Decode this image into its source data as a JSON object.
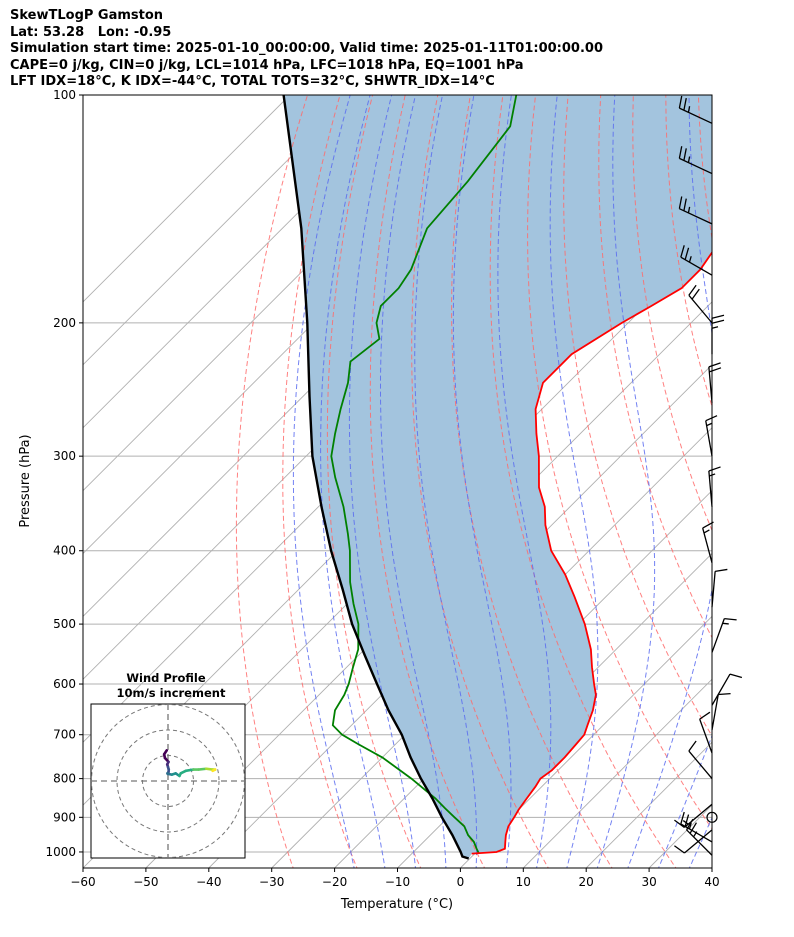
{
  "header": {
    "line1": "SkewTLogP Gamston",
    "line2": "Lat: 53.28   Lon: -0.95",
    "line3": "Simulation start time: 2025-01-10_00:00:00, Valid time: 2025-01-11T01:00:00.00",
    "line4": "CAPE=0 j/kg, CIN=0 j/kg, LCL=1014 hPa, LFC=1018 hPa, EQ=1001 hPa",
    "line5": "LFT IDX=18°C, K IDX=-44°C, TOTAL TOTS=32°C, SHWTR_IDX=14°C"
  },
  "chart_data": {
    "type": "line",
    "subtype": "skew-t log-p",
    "xlabel": "Temperature (°C)",
    "ylabel": "Pressure (hPa)",
    "xlim": [
      -60,
      40
    ],
    "ylim": [
      1050,
      100
    ],
    "y_scale": "log",
    "grid": true,
    "x_ticks": [
      -60,
      -50,
      -40,
      -30,
      -20,
      -10,
      0,
      10,
      20,
      30,
      40
    ],
    "x_tick_labels": [
      "−60",
      "−50",
      "−40",
      "−30",
      "−20",
      "−10",
      "0",
      "10",
      "20",
      "30",
      "40"
    ],
    "y_ticks": [
      1000,
      900,
      800,
      700,
      600,
      500,
      400,
      300,
      200,
      100
    ],
    "y_tick_labels": [
      "1000",
      "900",
      "800",
      "700",
      "600",
      "500",
      "400",
      "300",
      "200",
      "100"
    ],
    "colors": {
      "temperature": "#ff0000",
      "dewpoint": "#008000",
      "parcel": "#000000",
      "cape_fill": "#a3c4de",
      "dry_adiabats": "#ff6b6b",
      "moist_adiabats": "#5b6cf0",
      "isotherms": "#b0b0b0"
    },
    "series": [
      {
        "key": "temperature",
        "pressure": [
          1005,
          1000,
          990,
          970,
          950,
          925,
          900,
          880,
          850,
          820,
          800,
          780,
          750,
          720,
          700,
          680,
          650,
          620,
          600,
          570,
          540,
          500,
          460,
          430,
          400,
          370,
          350,
          330,
          300,
          280,
          260,
          240,
          220,
          200,
          190,
          180,
          170,
          160,
          150,
          140,
          130,
          120,
          110,
          100
        ],
        "temp": [
          -0.5,
          3.2,
          4,
          3,
          2,
          1,
          0.5,
          0,
          -0.5,
          -1,
          -1.5,
          -1,
          -1,
          -1.3,
          -1.5,
          -2.5,
          -4,
          -6,
          -8,
          -11,
          -14,
          -19,
          -25,
          -30,
          -36,
          -41,
          -44,
          -48,
          -53,
          -57,
          -61,
          -64,
          -64,
          -61,
          -59,
          -57,
          -57,
          -58,
          -58.2,
          -57.5,
          -57.5,
          -57.6,
          -57.5,
          -57.3
        ]
      },
      {
        "key": "dewpoint",
        "pressure": [
          1003,
          990,
          970,
          950,
          925,
          900,
          875,
          850,
          800,
          750,
          720,
          700,
          680,
          650,
          620,
          600,
          570,
          540,
          500,
          470,
          440,
          400,
          380,
          350,
          320,
          300,
          280,
          260,
          240,
          225,
          210,
          200,
          190,
          180,
          170,
          150,
          130,
          110,
          100
        ],
        "dewp": [
          0.5,
          -0.5,
          -2,
          -4,
          -6,
          -9,
          -12,
          -15,
          -22,
          -30,
          -36,
          -40,
          -43,
          -45,
          -46,
          -47,
          -49,
          -51,
          -55,
          -59,
          -63,
          -68,
          -71,
          -76,
          -82,
          -86,
          -89,
          -92,
          -95,
          -98,
          -97,
          -100,
          -102,
          -102,
          -103,
          -107,
          -108,
          -110,
          -114
        ]
      },
      {
        "key": "parcel",
        "pressure": [
          1020,
          1014,
          1000,
          950,
          900,
          850,
          800,
          750,
          700,
          650,
          600,
          550,
          500,
          450,
          400,
          350,
          300,
          250,
          200,
          150,
          100
        ],
        "temp": [
          -0.2,
          -1.5,
          -2.5,
          -6.5,
          -11,
          -15.5,
          -20.5,
          -25.5,
          -30.5,
          -36.5,
          -42.5,
          -49,
          -56,
          -63,
          -71,
          -79.5,
          -89,
          -99,
          -111,
          -127,
          -151
        ]
      }
    ],
    "wind_barbs": [
      {
        "pressure": 1010,
        "speed_kt": 25,
        "dir_deg": 315
      },
      {
        "pressure": 970,
        "speed_kt": 25,
        "dir_deg": 300
      },
      {
        "pressure": 935,
        "speed_kt": 10,
        "dir_deg": 230
      },
      {
        "pressure": 900,
        "speed_kt": 0,
        "dir_deg": 0
      },
      {
        "pressure": 865,
        "speed_kt": 15,
        "dir_deg": 230
      },
      {
        "pressure": 800,
        "speed_kt": 10,
        "dir_deg": 320
      },
      {
        "pressure": 740,
        "speed_kt": 10,
        "dir_deg": 340
      },
      {
        "pressure": 690,
        "speed_kt": 10,
        "dir_deg": 10
      },
      {
        "pressure": 640,
        "speed_kt": 10,
        "dir_deg": 30
      },
      {
        "pressure": 545,
        "speed_kt": 15,
        "dir_deg": 20
      },
      {
        "pressure": 475,
        "speed_kt": 10,
        "dir_deg": 5
      },
      {
        "pressure": 415,
        "speed_kt": 15,
        "dir_deg": 345
      },
      {
        "pressure": 350,
        "speed_kt": 15,
        "dir_deg": 355
      },
      {
        "pressure": 300,
        "speed_kt": 15,
        "dir_deg": 350
      },
      {
        "pressure": 255,
        "speed_kt": 20,
        "dir_deg": 355
      },
      {
        "pressure": 220,
        "speed_kt": 25,
        "dir_deg": 360
      },
      {
        "pressure": 200,
        "speed_kt": 20,
        "dir_deg": 320
      },
      {
        "pressure": 173,
        "speed_kt": 25,
        "dir_deg": 300
      },
      {
        "pressure": 148,
        "speed_kt": 25,
        "dir_deg": 295
      },
      {
        "pressure": 127,
        "speed_kt": 25,
        "dir_deg": 295
      },
      {
        "pressure": 109,
        "speed_kt": 25,
        "dir_deg": 295
      }
    ],
    "inset": {
      "title": "Wind Profile",
      "subtitle": "10m/s increment",
      "rings_ms": [
        10,
        20,
        30
      ],
      "hodograph_u": [
        -0.5,
        -1.5,
        -1.2,
        0.2,
        -0.3,
        0.0,
        0.3,
        0.2,
        -0.2,
        -0.1,
        1.5,
        3.0,
        4.5,
        5.0,
        7.0,
        10.0,
        12.0,
        15.0,
        17.5,
        18.5,
        17.5
      ],
      "hodograph_v": [
        -12.0,
        -10.5,
        -9.0,
        -7.5,
        -6.5,
        -5.5,
        -4.5,
        -3.5,
        -3.0,
        -2.8,
        -2.5,
        -3.0,
        -2.0,
        -3.0,
        -4.0,
        -4.5,
        -4.5,
        -4.8,
        -4.5,
        -4.5,
        -4.0
      ]
    }
  }
}
